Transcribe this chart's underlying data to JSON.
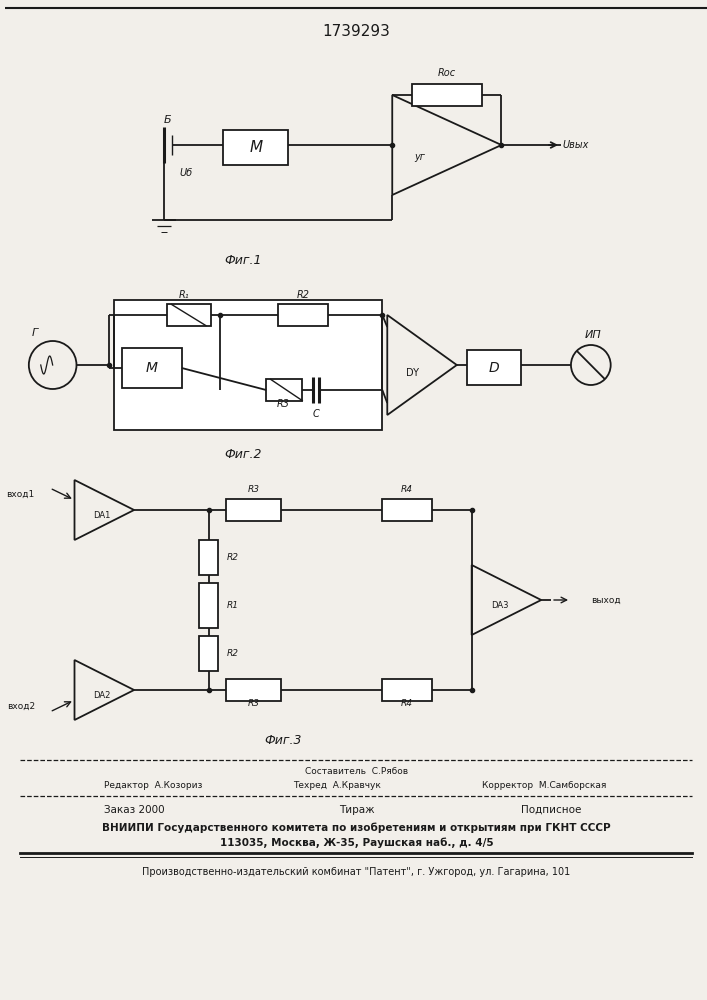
{
  "title": "1739293",
  "fig1_label": "Фиг.1",
  "fig2_label": "Фиг.2",
  "fig3_label": "Фиг.3",
  "bg_color": "#f2efea",
  "line_color": "#1a1a1a",
  "footer_sestavitel": "Составитель  С.Рябов",
  "footer_editor": "Редактор  А.Козориз",
  "footer_tech": "Техред  А.Кравчук",
  "footer_corr": "Корректор  М.Самборская",
  "footer_order": "Заказ 2000",
  "footer_tirazh": "Тираж",
  "footer_podp": "Подписное",
  "footer_vniip": "ВНИИПИ Государственного комитета по изобретениям и открытиям при ГКНТ СССР",
  "footer_addr": "113035, Москва, Ж-35, Раушская наб., д. 4/5",
  "footer_prod": "Производственно-издательский комбинат \"Патент\", г. Ужгород, ул. Гагарина, 101"
}
